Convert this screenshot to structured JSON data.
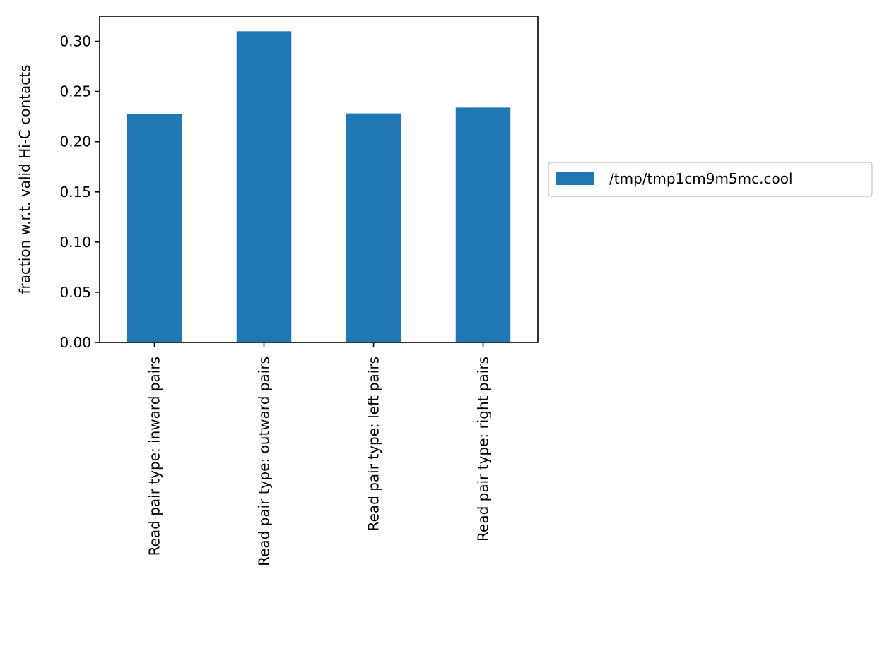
{
  "chart_data": {
    "type": "bar",
    "title": "",
    "xlabel": "",
    "ylabel": "fraction w.r.t. valid Hi-C contacts",
    "categories": [
      "Read pair type: inward pairs",
      "Read pair type: outward pairs",
      "Read pair type: left pairs",
      "Read pair type: right pairs"
    ],
    "series": [
      {
        "name": "/tmp/tmp1cm9m5mc.cool",
        "values": [
          0.2275,
          0.31,
          0.2282,
          0.234
        ],
        "color": "#1f77b4"
      }
    ],
    "ylim": [
      0,
      0.325
    ],
    "yticks": [
      0.0,
      0.05,
      0.1,
      0.15,
      0.2,
      0.25,
      0.3
    ],
    "ytick_labels": [
      "0.00",
      "0.05",
      "0.10",
      "0.15",
      "0.20",
      "0.25",
      "0.30"
    ],
    "grid": false,
    "legend_position": "center-right, outside plot area"
  }
}
